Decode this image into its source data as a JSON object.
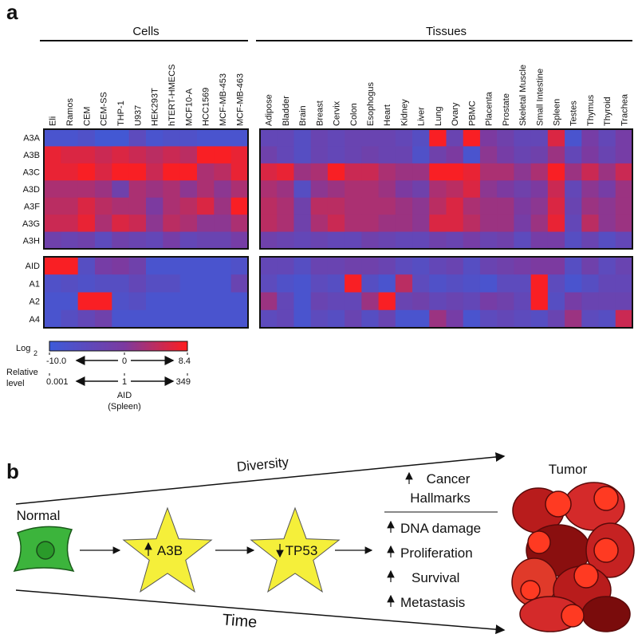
{
  "chart_data": {
    "type": "heatmap",
    "label": "a",
    "row_groups": [
      [
        "A3A",
        "A3B",
        "A3C",
        "A3D",
        "A3F",
        "A3G",
        "A3H"
      ],
      [
        "AID",
        "A1",
        "A2",
        "A4"
      ]
    ],
    "column_groups": [
      {
        "name": "Cells",
        "columns": [
          "Eli",
          "Ramos",
          "CEM",
          "CEM-SS",
          "THP-1",
          "U937",
          "HEK293T",
          "hTERT-HMECS",
          "MCF10-A",
          "HCC1569",
          "MCF-MB-453",
          "MCF-MB-463"
        ],
        "values": [
          [
            [
              -8,
              -8,
              -7,
              -9,
              -9,
              -5,
              -8,
              -7,
              -7,
              -8,
              -8,
              -8
            ],
            [
              7,
              6,
              6,
              5,
              6,
              5,
              4,
              5,
              4,
              8,
              8,
              7
            ],
            [
              7,
              7,
              8,
              6,
              8,
              8,
              5,
              8,
              8,
              3,
              4,
              7
            ],
            [
              3,
              3,
              3,
              2,
              -2,
              3,
              2,
              3,
              1,
              3,
              1,
              3
            ],
            [
              4,
              4,
              6,
              4,
              3,
              3,
              0,
              3,
              4,
              6,
              2,
              8
            ],
            [
              5,
              5,
              7,
              3,
              6,
              5,
              1,
              4,
              3,
              1,
              1,
              3
            ],
            [
              -2,
              -3,
              -2,
              -5,
              -2,
              -3,
              -4,
              -1,
              -4,
              -3,
              -3,
              -1
            ]
          ],
          [
            [
              8,
              8,
              -6,
              -1,
              0,
              -2,
              -8,
              -8,
              -8,
              -8,
              -8,
              -7
            ],
            [
              -7,
              -6,
              -7,
              -6,
              -6,
              -4,
              -6,
              -6,
              -8,
              -8,
              -8,
              -3
            ],
            [
              -8,
              -8,
              8,
              8,
              -7,
              -6,
              -8,
              -8,
              -8,
              -8,
              -8,
              -8
            ],
            [
              -8,
              -6,
              -4,
              -2,
              -8,
              -8,
              -8,
              -8,
              -8,
              -8,
              -8,
              -8
            ]
          ]
        ]
      },
      {
        "name": "Tissues",
        "columns": [
          "Adipose",
          "Bladder",
          "Brain",
          "Breast",
          "Cervix",
          "Colon",
          "Esophogus",
          "Heart",
          "Kidney",
          "Liver",
          "Lung",
          "Ovary",
          "PBMC",
          "Placenta",
          "Prostate",
          "Skeletal Muscle",
          "Small Intestine",
          "Spleen",
          "Testes",
          "Thymus",
          "Thyroid",
          "Trachea"
        ],
        "values": [
          [
            [
              -4,
              -4,
              -6,
              -3,
              -4,
              -3,
              -3,
              -3,
              -4,
              -6,
              8,
              -3,
              8,
              0,
              -2,
              -4,
              -4,
              6,
              -8,
              -1,
              -4,
              -1
            ],
            [
              -2,
              -4,
              -6,
              -3,
              -4,
              -3,
              -2,
              -3,
              -3,
              -7,
              -2,
              0,
              -8,
              1,
              -1,
              -3,
              -2,
              2,
              -4,
              0,
              -3,
              -1
            ],
            [
              6,
              7,
              2,
              3,
              8,
              5,
              5,
              3,
              2,
              2,
              8,
              8,
              7,
              3,
              3,
              1,
              3,
              8,
              2,
              5,
              2,
              5
            ],
            [
              3,
              2,
              -6,
              1,
              2,
              3,
              3,
              2,
              0,
              -2,
              3,
              4,
              6,
              1,
              0,
              -2,
              0,
              5,
              -4,
              1,
              -1,
              2
            ],
            [
              4,
              3,
              -2,
              4,
              4,
              3,
              3,
              3,
              2,
              1,
              4,
              6,
              3,
              2,
              2,
              0,
              1,
              6,
              -3,
              2,
              1,
              2
            ],
            [
              4,
              3,
              -2,
              3,
              5,
              3,
              3,
              2,
              2,
              1,
              6,
              6,
              4,
              2,
              2,
              -1,
              2,
              7,
              -4,
              4,
              1,
              2
            ],
            [
              -2,
              -3,
              -4,
              -3,
              -4,
              -4,
              -2,
              -3,
              -4,
              -4,
              -2,
              -3,
              -1,
              -3,
              -2,
              -5,
              -1,
              -1,
              -6,
              -3,
              -6,
              -4
            ]
          ],
          [
            [
              -4,
              -4,
              -6,
              -3,
              -3,
              -2,
              -2,
              -3,
              -5,
              -6,
              -4,
              -3,
              -6,
              -3,
              -2,
              -1,
              0,
              0,
              -6,
              -2,
              -5,
              -3
            ],
            [
              -5,
              -7,
              -8,
              -5,
              -6,
              8,
              -6,
              -8,
              4,
              -5,
              -7,
              -6,
              -7,
              -8,
              -5,
              -5,
              8,
              -5,
              -8,
              -6,
              -4,
              -4
            ],
            [
              2,
              -4,
              -8,
              -3,
              -4,
              -4,
              2,
              8,
              -3,
              -2,
              -4,
              -3,
              -4,
              -1,
              -2,
              -4,
              8,
              -6,
              -1,
              -3,
              -3,
              -3
            ],
            [
              -5,
              -4,
              -8,
              -5,
              -6,
              -3,
              -6,
              -3,
              -8,
              -8,
              2,
              -1,
              -8,
              -5,
              -4,
              -5,
              -6,
              -3,
              2,
              -5,
              -6,
              5
            ]
          ]
        ]
      }
    ],
    "colorbar": {
      "title": "Log",
      "title_subscript": "2",
      "lim": [
        -10,
        8.4
      ],
      "ticks": [
        {
          "value": -10,
          "label": "-10.0"
        },
        0,
        8.4
      ],
      "colors": [
        "#3d5bd9",
        "#7c3aa0",
        "#ff1e1e"
      ],
      "relative_title": [
        "Relative",
        "level"
      ],
      "relative_ticks": [
        {
          "value": -10,
          "label": "0.001"
        },
        {
          "value": 0,
          "label": "1"
        },
        {
          "value": 8.4,
          "label": "349"
        }
      ],
      "relative_reference": [
        "AID",
        "(Spleen)"
      ]
    }
  },
  "diagram": {
    "label": "b",
    "top_arrow": "Diversity",
    "bottom_arrow": "Time",
    "start": "Normal",
    "steps": [
      "A3B",
      "TP53"
    ],
    "hallmarks_title": [
      "Cancer",
      "Hallmarks"
    ],
    "hallmarks": [
      "DNA damage",
      "Proliferation",
      "Survival",
      "Metastasis"
    ],
    "end": "Tumor"
  }
}
